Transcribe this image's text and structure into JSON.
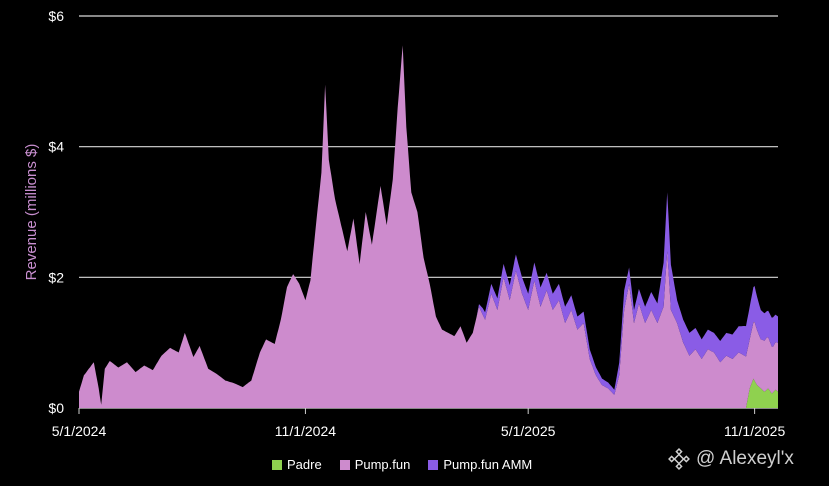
{
  "chart_data": {
    "type": "area",
    "stacked": true,
    "ylabel": "Revenue (millions $)",
    "ylim": [
      0,
      6
    ],
    "yticks": [
      {
        "value": 0,
        "label": "$0"
      },
      {
        "value": 2,
        "label": "$2"
      },
      {
        "value": 4,
        "label": "$4"
      },
      {
        "value": 6,
        "label": "$6"
      }
    ],
    "xticks": [
      "5/1/2024",
      "11/1/2024",
      "5/1/2025",
      "11/1/2025"
    ],
    "x_start": "2024-05-01",
    "x_end": "2025-11-20",
    "grid": "horizontal",
    "legend_position": "bottom",
    "colors": {
      "Padre": "#8fd14f",
      "Pump.fun": "#cd8bcd",
      "Pump.fun AMM": "#8a5ce6",
      "grid": "#d9d9d9"
    },
    "series": [
      {
        "name": "Padre",
        "points": [
          [
            "2025-10-25",
            0
          ],
          [
            "2025-10-28",
            0.3
          ],
          [
            "2025-10-31",
            0.45
          ],
          [
            "2025-11-03",
            0.35
          ],
          [
            "2025-11-06",
            0.3
          ],
          [
            "2025-11-09",
            0.25
          ],
          [
            "2025-11-12",
            0.3
          ],
          [
            "2025-11-15",
            0.22
          ],
          [
            "2025-11-18",
            0.28
          ],
          [
            "2025-11-20",
            0.25
          ]
        ]
      },
      {
        "name": "Pump.fun",
        "points": [
          [
            "2024-05-01",
            0.25
          ],
          [
            "2024-05-05",
            0.5
          ],
          [
            "2024-05-09",
            0.6
          ],
          [
            "2024-05-13",
            0.7
          ],
          [
            "2024-05-17",
            0.3
          ],
          [
            "2024-05-19",
            0.05
          ],
          [
            "2024-05-22",
            0.6
          ],
          [
            "2024-05-26",
            0.72
          ],
          [
            "2024-06-02",
            0.62
          ],
          [
            "2024-06-09",
            0.7
          ],
          [
            "2024-06-16",
            0.55
          ],
          [
            "2024-06-23",
            0.65
          ],
          [
            "2024-06-30",
            0.58
          ],
          [
            "2024-07-07",
            0.8
          ],
          [
            "2024-07-14",
            0.92
          ],
          [
            "2024-07-21",
            0.85
          ],
          [
            "2024-07-26",
            1.15
          ],
          [
            "2024-08-02",
            0.78
          ],
          [
            "2024-08-07",
            0.95
          ],
          [
            "2024-08-14",
            0.6
          ],
          [
            "2024-08-21",
            0.52
          ],
          [
            "2024-08-28",
            0.42
          ],
          [
            "2024-09-04",
            0.38
          ],
          [
            "2024-09-11",
            0.32
          ],
          [
            "2024-09-18",
            0.42
          ],
          [
            "2024-09-25",
            0.85
          ],
          [
            "2024-09-30",
            1.05
          ],
          [
            "2024-10-07",
            0.98
          ],
          [
            "2024-10-12",
            1.35
          ],
          [
            "2024-10-17",
            1.85
          ],
          [
            "2024-10-22",
            2.05
          ],
          [
            "2024-10-27",
            1.9
          ],
          [
            "2024-11-01",
            1.65
          ],
          [
            "2024-11-05",
            1.95
          ],
          [
            "2024-11-09",
            2.7
          ],
          [
            "2024-11-14",
            3.6
          ],
          [
            "2024-11-17",
            4.95
          ],
          [
            "2024-11-20",
            3.8
          ],
          [
            "2024-11-25",
            3.2
          ],
          [
            "2024-11-30",
            2.8
          ],
          [
            "2024-12-05",
            2.4
          ],
          [
            "2024-12-10",
            2.9
          ],
          [
            "2024-12-15",
            2.2
          ],
          [
            "2024-12-20",
            3.0
          ],
          [
            "2024-12-25",
            2.5
          ],
          [
            "2025-01-01",
            3.4
          ],
          [
            "2025-01-06",
            2.8
          ],
          [
            "2025-01-11",
            3.5
          ],
          [
            "2025-01-15",
            4.6
          ],
          [
            "2025-01-19",
            5.55
          ],
          [
            "2025-01-22",
            4.3
          ],
          [
            "2025-01-26",
            3.3
          ],
          [
            "2025-01-31",
            3.0
          ],
          [
            "2025-02-05",
            2.3
          ],
          [
            "2025-02-10",
            1.9
          ],
          [
            "2025-02-15",
            1.4
          ],
          [
            "2025-02-20",
            1.2
          ],
          [
            "2025-02-25",
            1.15
          ],
          [
            "2025-03-02",
            1.1
          ],
          [
            "2025-03-07",
            1.25
          ],
          [
            "2025-03-12",
            1.0
          ],
          [
            "2025-03-17",
            1.15
          ],
          [
            "2025-03-22",
            1.55
          ],
          [
            "2025-03-27",
            1.35
          ],
          [
            "2025-04-01",
            1.75
          ],
          [
            "2025-04-06",
            1.5
          ],
          [
            "2025-04-11",
            2.0
          ],
          [
            "2025-04-16",
            1.65
          ],
          [
            "2025-04-21",
            2.1
          ],
          [
            "2025-04-26",
            1.75
          ],
          [
            "2025-05-01",
            1.5
          ],
          [
            "2025-05-06",
            1.95
          ],
          [
            "2025-05-11",
            1.55
          ],
          [
            "2025-05-16",
            1.8
          ],
          [
            "2025-05-21",
            1.5
          ],
          [
            "2025-05-26",
            1.65
          ],
          [
            "2025-05-31",
            1.3
          ],
          [
            "2025-06-05",
            1.5
          ],
          [
            "2025-06-10",
            1.2
          ],
          [
            "2025-06-15",
            1.3
          ],
          [
            "2025-06-20",
            0.75
          ],
          [
            "2025-06-25",
            0.5
          ],
          [
            "2025-06-30",
            0.35
          ],
          [
            "2025-07-05",
            0.3
          ],
          [
            "2025-07-10",
            0.2
          ],
          [
            "2025-07-14",
            0.5
          ],
          [
            "2025-07-18",
            1.5
          ],
          [
            "2025-07-22",
            1.9
          ],
          [
            "2025-07-26",
            1.3
          ],
          [
            "2025-07-30",
            1.6
          ],
          [
            "2025-08-04",
            1.3
          ],
          [
            "2025-08-09",
            1.5
          ],
          [
            "2025-08-14",
            1.3
          ],
          [
            "2025-08-19",
            1.55
          ],
          [
            "2025-08-22",
            2.4
          ],
          [
            "2025-08-25",
            1.5
          ],
          [
            "2025-08-30",
            1.3
          ],
          [
            "2025-09-04",
            1.0
          ],
          [
            "2025-09-09",
            0.8
          ],
          [
            "2025-09-14",
            0.9
          ],
          [
            "2025-09-19",
            0.75
          ],
          [
            "2025-09-24",
            0.9
          ],
          [
            "2025-09-29",
            0.85
          ],
          [
            "2025-10-04",
            0.7
          ],
          [
            "2025-10-09",
            0.8
          ],
          [
            "2025-10-14",
            0.75
          ],
          [
            "2025-10-19",
            0.85
          ],
          [
            "2025-10-24",
            0.8
          ],
          [
            "2025-10-28",
            0.75
          ],
          [
            "2025-11-01",
            0.9
          ],
          [
            "2025-11-06",
            0.75
          ],
          [
            "2025-11-11",
            0.8
          ],
          [
            "2025-11-16",
            0.7
          ],
          [
            "2025-11-20",
            0.75
          ]
        ]
      },
      {
        "name": "Pump.fun AMM",
        "points": [
          [
            "2025-03-20",
            0
          ],
          [
            "2025-03-25",
            0.1
          ],
          [
            "2025-04-01",
            0.15
          ],
          [
            "2025-04-10",
            0.2
          ],
          [
            "2025-04-20",
            0.25
          ],
          [
            "2025-05-01",
            0.25
          ],
          [
            "2025-05-10",
            0.3
          ],
          [
            "2025-05-20",
            0.25
          ],
          [
            "2025-05-31",
            0.25
          ],
          [
            "2025-06-10",
            0.2
          ],
          [
            "2025-06-20",
            0.15
          ],
          [
            "2025-06-30",
            0.1
          ],
          [
            "2025-07-10",
            0.08
          ],
          [
            "2025-07-18",
            0.3
          ],
          [
            "2025-07-26",
            0.2
          ],
          [
            "2025-08-04",
            0.25
          ],
          [
            "2025-08-14",
            0.3
          ],
          [
            "2025-08-22",
            0.9
          ],
          [
            "2025-08-30",
            0.35
          ],
          [
            "2025-09-09",
            0.35
          ],
          [
            "2025-09-19",
            0.3
          ],
          [
            "2025-09-29",
            0.3
          ],
          [
            "2025-10-09",
            0.35
          ],
          [
            "2025-10-19",
            0.4
          ],
          [
            "2025-10-28",
            0.5
          ],
          [
            "2025-11-01",
            0.55
          ],
          [
            "2025-11-06",
            0.45
          ],
          [
            "2025-11-11",
            0.4
          ],
          [
            "2025-11-16",
            0.45
          ],
          [
            "2025-11-20",
            0.4
          ]
        ]
      }
    ]
  },
  "legend": {
    "items": [
      {
        "label": "Padre",
        "color": "#8fd14f"
      },
      {
        "label": "Pump.fun",
        "color": "#cd8bcd"
      },
      {
        "label": "Pump.fun AMM",
        "color": "#8a5ce6"
      }
    ]
  },
  "watermark": {
    "text": "@ Alexeyl'x",
    "icon": "binance-logo-icon"
  }
}
